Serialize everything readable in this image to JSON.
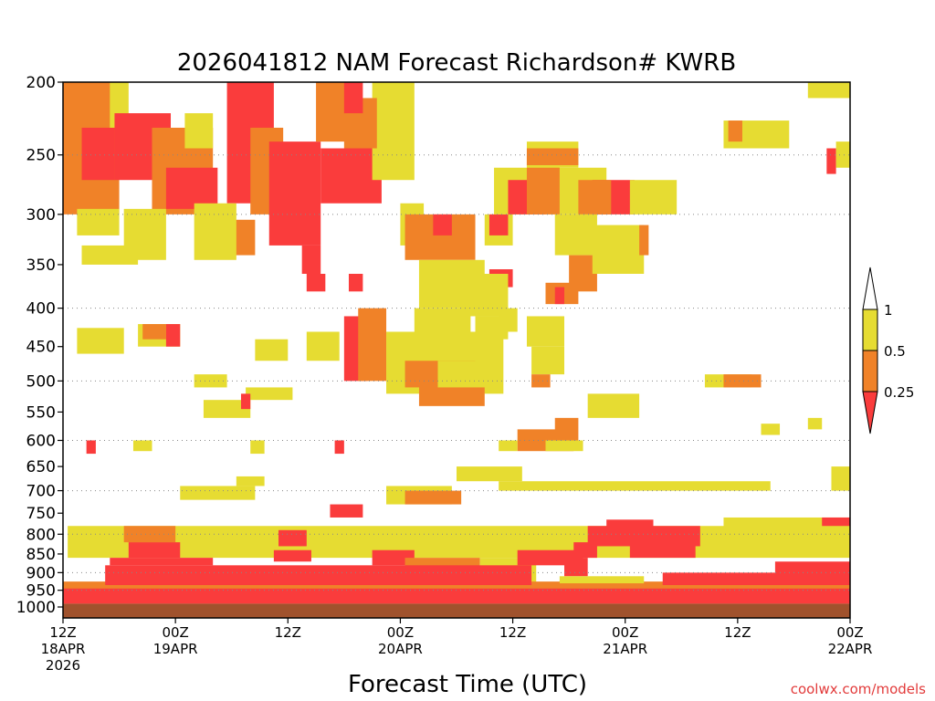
{
  "chart_data": {
    "type": "heatmap",
    "title": "2026041812 NAM Forecast Richardson# KWRB",
    "xlabel": "Forecast Time (UTC)",
    "ylabel": "",
    "watermark": "coolwx.com/models",
    "y_axis": {
      "scale": "log-pressure",
      "range_hPa": [
        200,
        1000
      ],
      "ticks": [
        200,
        250,
        300,
        350,
        400,
        450,
        500,
        550,
        600,
        650,
        700,
        750,
        800,
        850,
        900,
        950,
        1000
      ],
      "dotted_gridlines": [
        250,
        300,
        400,
        500,
        600,
        700,
        800,
        900,
        950
      ]
    },
    "x_axis": {
      "range_hours": [
        0,
        84
      ],
      "ticks": [
        {
          "hour": 0,
          "lines": [
            "12Z",
            "18APR",
            "2026"
          ]
        },
        {
          "hour": 12,
          "lines": [
            "00Z",
            "19APR"
          ]
        },
        {
          "hour": 24,
          "lines": [
            "12Z"
          ]
        },
        {
          "hour": 36,
          "lines": [
            "00Z",
            "20APR"
          ]
        },
        {
          "hour": 48,
          "lines": [
            "12Z"
          ]
        },
        {
          "hour": 60,
          "lines": [
            "00Z",
            "21APR"
          ]
        },
        {
          "hour": 72,
          "lines": [
            "12Z"
          ]
        },
        {
          "hour": 84,
          "lines": [
            "00Z",
            "22APR"
          ]
        }
      ]
    },
    "legend": {
      "position": "right",
      "labels": [
        "1",
        "0.5",
        "0.25"
      ],
      "bins": [
        {
          "range": "> 1",
          "color": "#ffffff"
        },
        {
          "range": "0.5 - 1",
          "color": "#e6dc32"
        },
        {
          "range": "0.25 - 0.5",
          "color": "#f08228"
        },
        {
          "range": "< 0.25",
          "color": "#fa3c3c"
        }
      ]
    },
    "colors": {
      "yellow": "#e6dc32",
      "orange": "#f08228",
      "red": "#fa3c3c",
      "ground": "#a0522d"
    },
    "regions": [
      {
        "c": "o",
        "h": [
          0.0,
          6.0
        ],
        "p": [
          200,
          300
        ]
      },
      {
        "c": "r",
        "h": [
          2.0,
          5.5
        ],
        "p": [
          230,
          270
        ]
      },
      {
        "c": "y",
        "h": [
          5.0,
          7.0
        ],
        "p": [
          200,
          230
        ]
      },
      {
        "c": "r",
        "h": [
          5.5,
          11.5
        ],
        "p": [
          220,
          270
        ]
      },
      {
        "c": "o",
        "h": [
          9.5,
          16.0
        ],
        "p": [
          230,
          300
        ]
      },
      {
        "c": "y",
        "h": [
          13.0,
          16.0
        ],
        "p": [
          220,
          245
        ]
      },
      {
        "c": "r",
        "h": [
          11.0,
          16.5
        ],
        "p": [
          260,
          295
        ]
      },
      {
        "c": "r",
        "h": [
          17.5,
          22.5
        ],
        "p": [
          200,
          290
        ]
      },
      {
        "c": "o",
        "h": [
          20.0,
          23.5
        ],
        "p": [
          230,
          300
        ]
      },
      {
        "c": "r",
        "h": [
          22.0,
          27.5
        ],
        "p": [
          240,
          330
        ]
      },
      {
        "c": "o",
        "h": [
          27.0,
          31.5
        ],
        "p": [
          200,
          240
        ]
      },
      {
        "c": "r",
        "h": [
          27.5,
          34.0
        ],
        "p": [
          245,
          290
        ]
      },
      {
        "c": "y",
        "h": [
          33.0,
          37.5
        ],
        "p": [
          200,
          270
        ]
      },
      {
        "c": "o",
        "h": [
          30.0,
          33.5
        ],
        "p": [
          210,
          245
        ]
      },
      {
        "c": "r",
        "h": [
          30.0,
          32.0
        ],
        "p": [
          200,
          220
        ]
      },
      {
        "c": "r",
        "h": [
          25.5,
          27.5
        ],
        "p": [
          330,
          360
        ]
      },
      {
        "c": "o",
        "h": [
          18.0,
          20.5
        ],
        "p": [
          305,
          340
        ]
      },
      {
        "c": "y",
        "h": [
          14.0,
          18.5
        ],
        "p": [
          290,
          345
        ]
      },
      {
        "c": "y",
        "h": [
          6.5,
          11.0
        ],
        "p": [
          295,
          345
        ]
      },
      {
        "c": "y",
        "h": [
          1.5,
          6.0
        ],
        "p": [
          295,
          320
        ]
      },
      {
        "c": "r",
        "h": [
          26.0,
          28.0
        ],
        "p": [
          360,
          380
        ]
      },
      {
        "c": "r",
        "h": [
          30.5,
          32.0
        ],
        "p": [
          360,
          380
        ]
      },
      {
        "c": "y",
        "h": [
          36.0,
          38.5
        ],
        "p": [
          290,
          330
        ]
      },
      {
        "c": "o",
        "h": [
          36.5,
          44.0
        ],
        "p": [
          300,
          345
        ]
      },
      {
        "c": "r",
        "h": [
          39.5,
          41.5
        ],
        "p": [
          300,
          320
        ]
      },
      {
        "c": "y",
        "h": [
          38.0,
          45.0
        ],
        "p": [
          345,
          400
        ]
      },
      {
        "c": "y",
        "h": [
          45.0,
          48.0
        ],
        "p": [
          300,
          330
        ]
      },
      {
        "c": "r",
        "h": [
          45.5,
          47.5
        ],
        "p": [
          300,
          320
        ]
      },
      {
        "c": "y",
        "h": [
          46.0,
          58.0
        ],
        "p": [
          260,
          300
        ]
      },
      {
        "c": "r",
        "h": [
          47.5,
          51.5
        ],
        "p": [
          270,
          300
        ]
      },
      {
        "c": "o",
        "h": [
          49.5,
          53.0
        ],
        "p": [
          250,
          300
        ]
      },
      {
        "c": "y",
        "h": [
          49.5,
          55.0
        ],
        "p": [
          240,
          260
        ]
      },
      {
        "c": "o",
        "h": [
          49.5,
          55.0
        ],
        "p": [
          245,
          258
        ]
      },
      {
        "c": "r",
        "h": [
          56.5,
          61.0
        ],
        "p": [
          270,
          300
        ]
      },
      {
        "c": "o",
        "h": [
          55.0,
          58.5
        ],
        "p": [
          270,
          300
        ]
      },
      {
        "c": "y",
        "h": [
          60.5,
          65.5
        ],
        "p": [
          270,
          300
        ]
      },
      {
        "c": "y",
        "h": [
          52.5,
          57.0
        ],
        "p": [
          300,
          340
        ]
      },
      {
        "c": "o",
        "h": [
          54.0,
          57.0
        ],
        "p": [
          340,
          380
        ]
      },
      {
        "c": "r",
        "h": [
          45.5,
          48.0
        ],
        "p": [
          355,
          375
        ]
      },
      {
        "c": "o",
        "h": [
          51.5,
          55.0
        ],
        "p": [
          370,
          395
        ]
      },
      {
        "c": "r",
        "h": [
          52.5,
          53.5
        ],
        "p": [
          375,
          395
        ]
      },
      {
        "c": "y",
        "h": [
          56.5,
          62.0
        ],
        "p": [
          310,
          360
        ]
      },
      {
        "c": "o",
        "h": [
          61.5,
          62.5
        ],
        "p": [
          310,
          340
        ]
      },
      {
        "c": "y",
        "h": [
          70.5,
          77.5
        ],
        "p": [
          225,
          245
        ]
      },
      {
        "c": "o",
        "h": [
          71.0,
          72.5
        ],
        "p": [
          225,
          240
        ]
      },
      {
        "c": "y",
        "h": [
          79.5,
          84.0
        ],
        "p": [
          200,
          210
        ]
      },
      {
        "c": "r",
        "h": [
          81.5,
          82.5
        ],
        "p": [
          245,
          265
        ]
      },
      {
        "c": "y",
        "h": [
          82.5,
          84.0
        ],
        "p": [
          240,
          260
        ]
      },
      {
        "c": "y",
        "h": [
          37.5,
          43.5
        ],
        "p": [
          400,
          460
        ]
      },
      {
        "c": "r",
        "h": [
          30.0,
          32.5
        ],
        "p": [
          410,
          500
        ]
      },
      {
        "c": "o",
        "h": [
          31.5,
          34.5
        ],
        "p": [
          400,
          500
        ]
      },
      {
        "c": "y",
        "h": [
          34.5,
          47.0
        ],
        "p": [
          430,
          520
        ]
      },
      {
        "c": "o",
        "h": [
          36.5,
          44.0
        ],
        "p": [
          470,
          510
        ]
      },
      {
        "c": "o",
        "h": [
          38.0,
          45.0
        ],
        "p": [
          490,
          540
        ]
      },
      {
        "c": "y",
        "h": [
          42.5,
          47.5
        ],
        "p": [
          360,
          410
        ]
      },
      {
        "c": "y",
        "h": [
          44.0,
          47.5
        ],
        "p": [
          410,
          440
        ]
      },
      {
        "c": "y",
        "h": [
          49.5,
          53.5
        ],
        "p": [
          410,
          450
        ]
      },
      {
        "c": "y",
        "h": [
          50.0,
          53.5
        ],
        "p": [
          450,
          490
        ]
      },
      {
        "c": "o",
        "h": [
          50.0,
          52.0
        ],
        "p": [
          490,
          510
        ]
      },
      {
        "c": "y",
        "h": [
          1.5,
          6.5
        ],
        "p": [
          425,
          460
        ]
      },
      {
        "c": "y",
        "h": [
          8.0,
          12.5
        ],
        "p": [
          420,
          450
        ]
      },
      {
        "c": "o",
        "h": [
          8.5,
          11.0
        ],
        "p": [
          420,
          440
        ]
      },
      {
        "c": "r",
        "h": [
          11.0,
          12.5
        ],
        "p": [
          420,
          450
        ]
      },
      {
        "c": "y",
        "h": [
          2.0,
          8.0
        ],
        "p": [
          330,
          350
        ]
      },
      {
        "c": "y",
        "h": [
          14.0,
          17.5
        ],
        "p": [
          490,
          510
        ]
      },
      {
        "c": "y",
        "h": [
          15.0,
          20.0
        ],
        "p": [
          530,
          560
        ]
      },
      {
        "c": "y",
        "h": [
          19.5,
          24.5
        ],
        "p": [
          510,
          530
        ]
      },
      {
        "c": "r",
        "h": [
          19.0,
          20.0
        ],
        "p": [
          520,
          545
        ]
      },
      {
        "c": "y",
        "h": [
          40.0,
          45.5
        ],
        "p": [
          470,
          510
        ]
      },
      {
        "c": "y",
        "h": [
          56.0,
          61.5
        ],
        "p": [
          520,
          560
        ]
      },
      {
        "c": "y",
        "h": [
          68.5,
          73.5
        ],
        "p": [
          490,
          510
        ]
      },
      {
        "c": "o",
        "h": [
          70.5,
          74.5
        ],
        "p": [
          490,
          510
        ]
      },
      {
        "c": "y",
        "h": [
          26.0,
          29.5
        ],
        "p": [
          430,
          470
        ]
      },
      {
        "c": "y",
        "h": [
          20.5,
          24.0
        ],
        "p": [
          440,
          470
        ]
      },
      {
        "c": "o",
        "h": [
          48.5,
          54.5
        ],
        "p": [
          580,
          620
        ]
      },
      {
        "c": "o",
        "h": [
          52.5,
          55.0
        ],
        "p": [
          560,
          600
        ]
      },
      {
        "c": "y",
        "h": [
          51.5,
          55.5
        ],
        "p": [
          600,
          620
        ]
      },
      {
        "c": "y",
        "h": [
          46.5,
          48.5
        ],
        "p": [
          600,
          620
        ]
      },
      {
        "c": "y",
        "h": [
          46.5,
          48.5
        ],
        "p": [
          400,
          430
        ]
      },
      {
        "c": "r",
        "h": [
          2.5,
          3.5
        ],
        "p": [
          600,
          625
        ]
      },
      {
        "c": "y",
        "h": [
          7.5,
          9.5
        ],
        "p": [
          600,
          620
        ]
      },
      {
        "c": "y",
        "h": [
          20.0,
          21.5
        ],
        "p": [
          600,
          625
        ]
      },
      {
        "c": "r",
        "h": [
          29.0,
          30.0
        ],
        "p": [
          600,
          625
        ]
      },
      {
        "c": "y",
        "h": [
          74.5,
          76.5
        ],
        "p": [
          570,
          590
        ]
      },
      {
        "c": "y",
        "h": [
          79.5,
          81.0
        ],
        "p": [
          560,
          580
        ]
      },
      {
        "c": "y",
        "h": [
          12.5,
          20.5
        ],
        "p": [
          690,
          720
        ]
      },
      {
        "c": "y",
        "h": [
          18.5,
          21.5
        ],
        "p": [
          670,
          690
        ]
      },
      {
        "c": "y",
        "h": [
          34.5,
          41.5
        ],
        "p": [
          690,
          730
        ]
      },
      {
        "c": "o",
        "h": [
          36.5,
          42.5
        ],
        "p": [
          700,
          730
        ]
      },
      {
        "c": "y",
        "h": [
          46.5,
          75.5
        ],
        "p": [
          680,
          700
        ]
      },
      {
        "c": "y",
        "h": [
          42.0,
          49.0
        ],
        "p": [
          650,
          680
        ]
      },
      {
        "c": "y",
        "h": [
          0.5,
          84.0
        ],
        "p": [
          780,
          860
        ]
      },
      {
        "c": "y",
        "h": [
          82.0,
          84.0
        ],
        "p": [
          650,
          700
        ]
      },
      {
        "c": "o",
        "h": [
          6.5,
          12.0
        ],
        "p": [
          780,
          820
        ]
      },
      {
        "c": "r",
        "h": [
          7.0,
          12.5
        ],
        "p": [
          820,
          860
        ]
      },
      {
        "c": "r",
        "h": [
          5.0,
          16.0
        ],
        "p": [
          860,
          880
        ]
      },
      {
        "c": "r",
        "h": [
          23.0,
          26.0
        ],
        "p": [
          790,
          830
        ]
      },
      {
        "c": "r",
        "h": [
          28.5,
          32.0
        ],
        "p": [
          730,
          760
        ]
      },
      {
        "c": "r",
        "h": [
          22.5,
          26.5
        ],
        "p": [
          840,
          870
        ]
      },
      {
        "c": "r",
        "h": [
          33.0,
          37.5
        ],
        "p": [
          840,
          880
        ]
      },
      {
        "c": "o",
        "h": [
          36.5,
          44.5
        ],
        "p": [
          860,
          930
        ]
      },
      {
        "c": "y",
        "h": [
          44.5,
          50.5
        ],
        "p": [
          860,
          940
        ]
      },
      {
        "c": "r",
        "h": [
          48.5,
          55.5
        ],
        "p": [
          840,
          880
        ]
      },
      {
        "c": "r",
        "h": [
          54.5,
          57.0
        ],
        "p": [
          820,
          860
        ]
      },
      {
        "c": "r",
        "h": [
          56.0,
          68.0
        ],
        "p": [
          780,
          830
        ]
      },
      {
        "c": "r",
        "h": [
          58.0,
          63.0
        ],
        "p": [
          765,
          790
        ]
      },
      {
        "c": "r",
        "h": [
          53.5,
          56.0
        ],
        "p": [
          860,
          910
        ]
      },
      {
        "c": "r",
        "h": [
          60.5,
          67.5
        ],
        "p": [
          820,
          860
        ]
      },
      {
        "c": "r",
        "h": [
          0.0,
          84.0
        ],
        "p": [
          935,
          990
        ]
      },
      {
        "c": "o",
        "h": [
          0.0,
          84.0
        ],
        "p": [
          925,
          945
        ]
      },
      {
        "c": "r",
        "h": [
          4.5,
          50.0
        ],
        "p": [
          880,
          935
        ]
      },
      {
        "c": "r",
        "h": [
          64.0,
          84.0
        ],
        "p": [
          900,
          935
        ]
      },
      {
        "c": "r",
        "h": [
          76.0,
          84.0
        ],
        "p": [
          870,
          905
        ]
      },
      {
        "c": "y",
        "h": [
          53.0,
          62.0
        ],
        "p": [
          910,
          930
        ]
      },
      {
        "c": "y",
        "h": [
          70.5,
          84.0
        ],
        "p": [
          760,
          790
        ]
      },
      {
        "c": "r",
        "h": [
          81.0,
          84.0
        ],
        "p": [
          760,
          780
        ]
      }
    ],
    "ground_color": "#a0522d",
    "ground_range_hPa": [
      990,
      1030
    ]
  },
  "legend_labels": {
    "top": "1",
    "mid": "0.5",
    "low": "0.25"
  }
}
